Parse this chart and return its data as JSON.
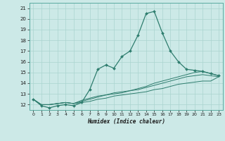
{
  "xlabel": "Humidex (Indice chaleur)",
  "ylabel": "",
  "bg_color": "#cce9e7",
  "grid_color": "#aad4d0",
  "line_color": "#2e7d6e",
  "xlim": [
    -0.5,
    23.5
  ],
  "ylim": [
    11.5,
    21.5
  ],
  "xticks": [
    0,
    1,
    2,
    3,
    4,
    5,
    6,
    7,
    8,
    9,
    10,
    11,
    12,
    13,
    14,
    15,
    16,
    17,
    18,
    19,
    20,
    21,
    22,
    23
  ],
  "yticks": [
    12,
    13,
    14,
    15,
    16,
    17,
    18,
    19,
    20,
    21
  ],
  "series": [
    [
      12.5,
      11.9,
      11.7,
      11.9,
      12.0,
      11.9,
      12.2,
      13.4,
      15.3,
      15.7,
      15.4,
      16.5,
      17.0,
      18.5,
      20.5,
      20.7,
      18.7,
      17.0,
      16.0,
      15.3,
      15.2,
      15.1,
      14.9,
      14.7
    ],
    [
      12.5,
      12.0,
      12.0,
      12.1,
      12.2,
      12.1,
      12.4,
      12.6,
      12.8,
      12.9,
      13.0,
      13.1,
      13.3,
      13.5,
      13.7,
      14.0,
      14.2,
      14.4,
      14.6,
      14.8,
      15.0,
      15.1,
      14.9,
      14.7
    ],
    [
      12.5,
      12.0,
      12.0,
      12.1,
      12.2,
      12.1,
      12.3,
      12.5,
      12.7,
      12.9,
      13.1,
      13.2,
      13.3,
      13.4,
      13.6,
      13.8,
      14.0,
      14.2,
      14.4,
      14.6,
      14.7,
      14.8,
      14.7,
      14.6
    ],
    [
      12.5,
      12.0,
      12.0,
      12.1,
      12.2,
      12.1,
      12.2,
      12.3,
      12.5,
      12.6,
      12.8,
      12.9,
      13.0,
      13.1,
      13.2,
      13.4,
      13.5,
      13.7,
      13.9,
      14.0,
      14.1,
      14.2,
      14.2,
      14.6
    ]
  ]
}
